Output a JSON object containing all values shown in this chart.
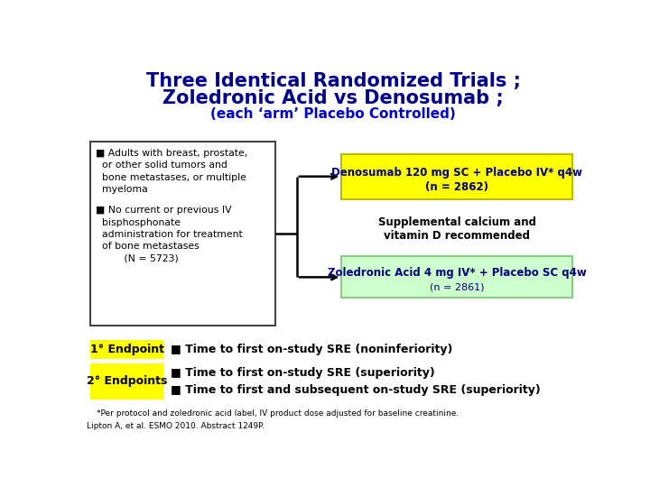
{
  "title_line1": "Three Identical Randomized Trials ;",
  "title_line2": "Zoledronic Acid vs Denosumab ;",
  "title_line3": "(each ‘arm’ Placebo Controlled)",
  "title_color": "#00008B",
  "title_line3_color": "#0000cc",
  "bg_color": "#ffffff",
  "left_box_bullet1_line1": "■ Adults with breast, prostate,",
  "left_box_bullet1_line2": "  or other solid tumors and",
  "left_box_bullet1_line3": "  bone metastases, or multiple",
  "left_box_bullet1_line4": "  myeloma",
  "left_box_bullet2_line1": "■ No current or previous IV",
  "left_box_bullet2_line2": "  bisphosphonate",
  "left_box_bullet2_line3": "  administration for treatment",
  "left_box_bullet2_line4": "  of bone metastases",
  "left_box_n": "         (N = 5723)",
  "right_top_box_text1": "Denosumab 120 mg SC + Placebo IV* q4w",
  "right_top_box_text2": "(n = 2862)",
  "right_top_box_bg": "#ffff00",
  "right_mid_text1": "Supplemental calcium and",
  "right_mid_text2": "vitamin D recommended",
  "right_bot_box_text1": "Zoledronic Acid 4 mg IV*",
  "right_bot_box_text1b": " + Placebo SC q4w",
  "right_bot_box_text2": "(n = 2861)",
  "right_bot_box_bg": "#ccffcc",
  "endpoint_box_bg": "#ffff00",
  "endpoint1_label": "1° Endpoint",
  "endpoint2_label": "2° Endpoints",
  "endpoint1_text": "■ Time to first on-study SRE (noninferiority)",
  "endpoint2_text1": "■ Time to first on-study SRE (superiority)",
  "endpoint2_text2": "■ Time to first and subsequent on-study SRE (superiority)",
  "footnote1": "*Per protocol and zoledronic acid label, IV product dose adjusted for baseline creatinine.",
  "footnote2": "Lipton A, et al. ESMO 2010. Abstract 1249P.",
  "text_dark_blue": "#000080",
  "text_black": "#000000",
  "text_navy": "#00008B"
}
